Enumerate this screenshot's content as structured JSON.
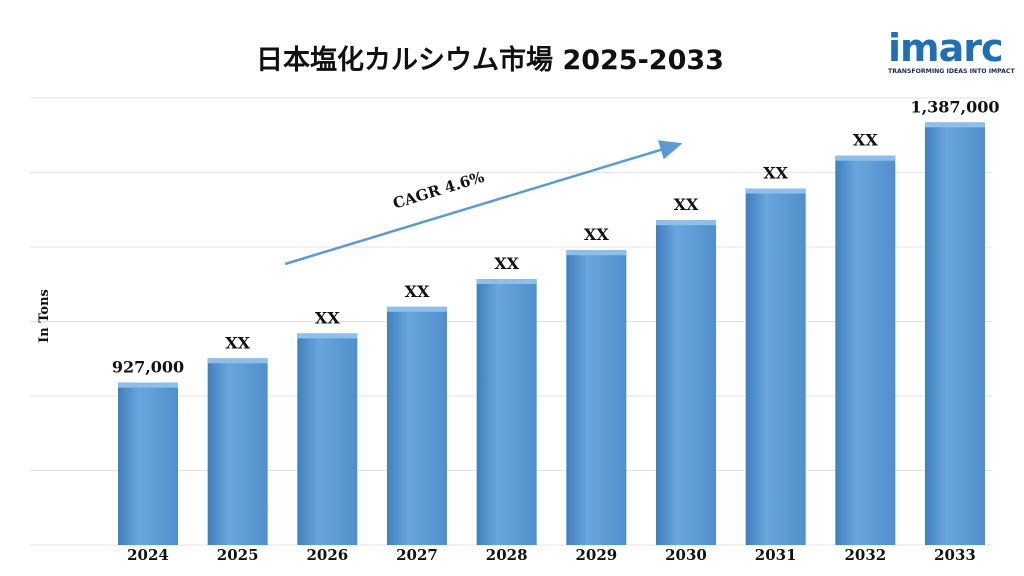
{
  "chart_data": {
    "type": "bar",
    "title": "日本塩化カルシウム市場 2025-2033",
    "ylabel": "In Tons",
    "xlabel": "",
    "categories": [
      "2024",
      "2025",
      "2026",
      "2027",
      "2028",
      "2029",
      "2030",
      "2031",
      "2032",
      "2033"
    ],
    "values": [
      927000,
      970000,
      1014000,
      1061000,
      1110000,
      1161000,
      1214000,
      1270000,
      1328000,
      1387000
    ],
    "data_labels": [
      "927,000",
      "XX",
      "XX",
      "XX",
      "XX",
      "XX",
      "XX",
      "XX",
      "XX",
      "1,387,000"
    ],
    "ylim": [
      640000,
      1430000
    ],
    "grid": true,
    "legend": "none",
    "annotation": "CAGR 4.6%",
    "bar_color": "#5b9bd5"
  },
  "logo": {
    "word": "imarc",
    "tagline": "TRANSFORMING IDEAS INTO IMPACT",
    "color": "#1f6fb6"
  }
}
